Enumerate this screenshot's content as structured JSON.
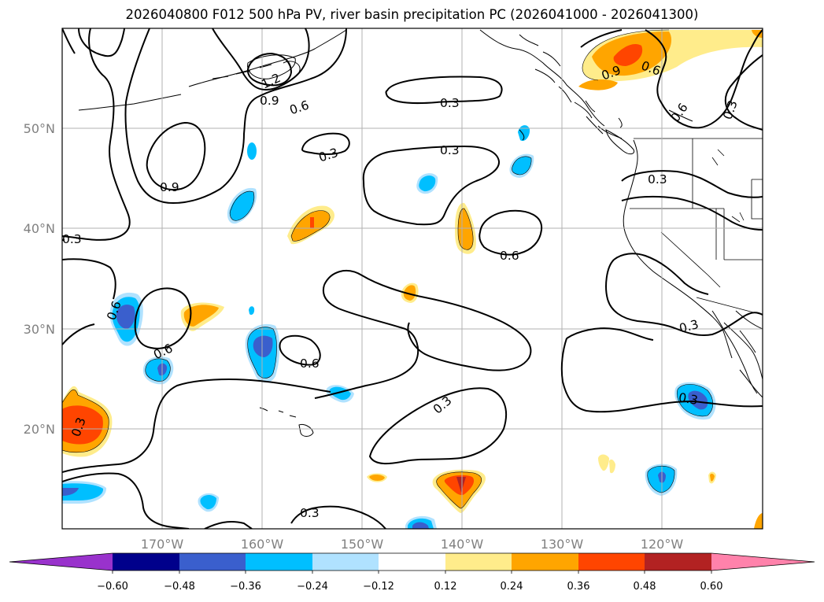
{
  "title": "2026040800 F012 500 hPa PV, river basin precipitation PC (2026041000 - 2026041300)",
  "map": {
    "lon_range": [
      -180,
      -110
    ],
    "lat_range": [
      10,
      60
    ],
    "lat_labels": [
      "50°N",
      "40°N",
      "30°N",
      "20°N"
    ],
    "lon_labels": [
      "170°W",
      "160°W",
      "150°W",
      "140°W",
      "130°W",
      "120°W"
    ],
    "contour_labels": [
      "1.2",
      "0.9",
      "0.6",
      "0.3",
      "0.3",
      "0.9",
      "0.9",
      "0.6",
      "0.6",
      "0.3",
      "0.3",
      "0.6",
      "0.6",
      "0.6",
      "0.6",
      "0.3",
      "0.3",
      "0.3",
      "0.3",
      "0.3",
      "0.3",
      "0.3"
    ]
  },
  "colorbar": {
    "colors": [
      "#9932cc",
      "#00008b",
      "#3a5fcd",
      "#00bfff",
      "#b0e2ff",
      "#ffffff",
      "#ffec8b",
      "#ffa500",
      "#ff4500",
      "#b22222",
      "#ff82ab"
    ],
    "tick_labels": [
      "−0.60",
      "−0.48",
      "−0.36",
      "−0.24",
      "−0.12",
      "0.12",
      "0.24",
      "0.36",
      "0.48",
      "0.60"
    ]
  }
}
